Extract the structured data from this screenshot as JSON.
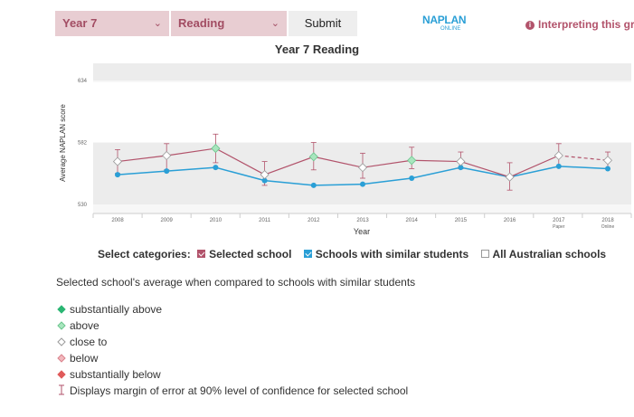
{
  "controls": {
    "year_select": "Year 7",
    "domain_select": "Reading",
    "submit_label": "Submit",
    "logo_main": "NAPLAN",
    "logo_sub": "ONLINE",
    "interpreting_link": "Interpreting this gr"
  },
  "chart_data": {
    "type": "line",
    "title": "Year 7 Reading",
    "xlabel": "Year",
    "ylabel": "Average NAPLAN score",
    "y_ticks": [
      "634",
      "582",
      "530"
    ],
    "ylim": [
      530,
      634
    ],
    "categories": [
      {
        "year": "2008",
        "sub": ""
      },
      {
        "year": "2009",
        "sub": ""
      },
      {
        "year": "2010",
        "sub": ""
      },
      {
        "year": "2011",
        "sub": ""
      },
      {
        "year": "2012",
        "sub": ""
      },
      {
        "year": "2013",
        "sub": ""
      },
      {
        "year": "2014",
        "sub": ""
      },
      {
        "year": "2015",
        "sub": ""
      },
      {
        "year": "2016",
        "sub": ""
      },
      {
        "year": "2017",
        "sub": "Paper"
      },
      {
        "year": "2018",
        "sub": "Online"
      }
    ],
    "shaded_band": [
      530,
      582
    ],
    "grid": true,
    "series": [
      {
        "name": "Selected school",
        "color": "#b2536b",
        "values": [
          566,
          571,
          577,
          555,
          570,
          561,
          567,
          566,
          553,
          571,
          567
        ],
        "margin_low": [
          556,
          559,
          565,
          546,
          559,
          552,
          560,
          560,
          542,
          562,
          560
        ],
        "margin_high": [
          576,
          581,
          589,
          566,
          582,
          573,
          578,
          574,
          565,
          581,
          574
        ],
        "comparison": [
          "close",
          "close",
          "above",
          "close",
          "above",
          "close",
          "above",
          "close",
          "close",
          "close",
          "close"
        ],
        "dashed_last_segment": true
      },
      {
        "name": "Schools with similar students",
        "color": "#2a9fd6",
        "values": [
          555,
          558,
          561,
          550,
          546,
          547,
          552,
          561,
          553,
          562,
          560
        ]
      }
    ]
  },
  "categories_selector": {
    "label": "Select categories:",
    "items": [
      {
        "label": "Selected school",
        "checked": true,
        "color": "#b2536b"
      },
      {
        "label": "Schools with similar students",
        "checked": true,
        "color": "#2a9fd6"
      },
      {
        "label": "All Australian schools",
        "checked": false,
        "color": "#999999"
      }
    ]
  },
  "comparison_description": "Selected school's average when compared to schools with similar students",
  "legend": [
    {
      "label": "substantially above",
      "shape": "diamond",
      "color": "#2bb673",
      "stroke": "#2bb673"
    },
    {
      "label": "above",
      "shape": "diamond",
      "color": "#a8e6be",
      "stroke": "#6cc58e"
    },
    {
      "label": "close to",
      "shape": "diamond",
      "color": "#ffffff",
      "stroke": "#999999"
    },
    {
      "label": "below",
      "shape": "diamond",
      "color": "#f2b8bd",
      "stroke": "#d9828c"
    },
    {
      "label": "substantially below",
      "shape": "diamond",
      "color": "#e05a5a",
      "stroke": "#e05a5a"
    },
    {
      "label": "Displays margin of error at 90% level of confidence for selected school",
      "shape": "errorbar",
      "color": "#b2536b",
      "stroke": "#b2536b"
    }
  ]
}
